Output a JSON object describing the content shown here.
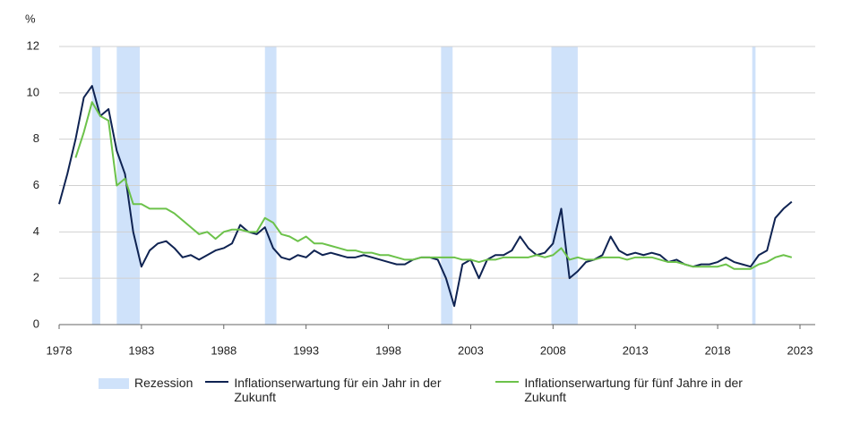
{
  "chart_data": {
    "type": "line",
    "y_unit_label": "%",
    "x": [
      1978.0,
      1978.5,
      1979.0,
      1979.5,
      1980.0,
      1980.5,
      1981.0,
      1981.5,
      1982.0,
      1982.5,
      1983.0,
      1983.5,
      1984.0,
      1984.5,
      1985.0,
      1985.5,
      1986.0,
      1986.5,
      1987.0,
      1987.5,
      1988.0,
      1988.5,
      1989.0,
      1989.5,
      1990.0,
      1990.5,
      1991.0,
      1991.5,
      1992.0,
      1992.5,
      1993.0,
      1993.5,
      1994.0,
      1994.5,
      1995.0,
      1995.5,
      1996.0,
      1996.5,
      1997.0,
      1997.5,
      1998.0,
      1998.5,
      1999.0,
      1999.5,
      2000.0,
      2000.5,
      2001.0,
      2001.5,
      2002.0,
      2002.5,
      2003.0,
      2003.5,
      2004.0,
      2004.5,
      2005.0,
      2005.5,
      2006.0,
      2006.5,
      2007.0,
      2007.5,
      2008.0,
      2008.5,
      2009.0,
      2009.5,
      2010.0,
      2010.5,
      2011.0,
      2011.5,
      2012.0,
      2012.5,
      2013.0,
      2013.5,
      2014.0,
      2014.5,
      2015.0,
      2015.5,
      2016.0,
      2016.5,
      2017.0,
      2017.5,
      2018.0,
      2018.5,
      2019.0,
      2019.5,
      2020.0,
      2020.5,
      2021.0,
      2021.5,
      2022.0,
      2022.5
    ],
    "recessions": {
      "name": "Rezession",
      "color": "#cfe2fa",
      "spans": [
        [
          1980.0,
          1980.5
        ],
        [
          1981.5,
          1982.9
        ],
        [
          1990.5,
          1991.2
        ],
        [
          2001.2,
          2001.9
        ],
        [
          2007.9,
          2009.5
        ],
        [
          2020.1,
          2020.3
        ]
      ]
    },
    "series": [
      {
        "name": "Inflationserwartung für ein Jahr in der Zukunft",
        "color": "#0f2352",
        "values": [
          5.2,
          6.5,
          8.0,
          9.8,
          10.3,
          9.0,
          9.3,
          7.5,
          6.5,
          4.0,
          2.5,
          3.2,
          3.5,
          3.6,
          3.3,
          2.9,
          3.0,
          2.8,
          3.0,
          3.2,
          3.3,
          3.5,
          4.3,
          4.0,
          3.9,
          4.2,
          3.3,
          2.9,
          2.8,
          3.0,
          2.9,
          3.2,
          3.0,
          3.1,
          3.0,
          2.9,
          2.9,
          3.0,
          2.9,
          2.8,
          2.7,
          2.6,
          2.6,
          2.8,
          2.9,
          2.9,
          2.8,
          2.0,
          0.8,
          2.6,
          2.8,
          2.0,
          2.8,
          3.0,
          3.0,
          3.2,
          3.8,
          3.3,
          3.0,
          3.1,
          3.5,
          5.0,
          2.0,
          2.3,
          2.7,
          2.8,
          3.0,
          3.8,
          3.2,
          3.0,
          3.1,
          3.0,
          3.1,
          3.0,
          2.7,
          2.8,
          2.6,
          2.5,
          2.6,
          2.6,
          2.7,
          2.9,
          2.7,
          2.6,
          2.5,
          3.0,
          3.2,
          4.6,
          5.0,
          5.3
        ]
      },
      {
        "name": "Inflationserwartung für fünf Jahre in der Zukunft",
        "color": "#6cc24a",
        "values": [
          null,
          null,
          7.2,
          8.3,
          9.6,
          9.0,
          8.8,
          6.0,
          6.3,
          5.2,
          5.2,
          5.0,
          5.0,
          5.0,
          4.8,
          4.5,
          4.2,
          3.9,
          4.0,
          3.7,
          4.0,
          4.1,
          4.1,
          4.0,
          4.0,
          4.6,
          4.4,
          3.9,
          3.8,
          3.6,
          3.8,
          3.5,
          3.5,
          3.4,
          3.3,
          3.2,
          3.2,
          3.1,
          3.1,
          3.0,
          3.0,
          2.9,
          2.8,
          2.8,
          2.9,
          2.9,
          2.9,
          2.9,
          2.9,
          2.8,
          2.8,
          2.7,
          2.8,
          2.8,
          2.9,
          2.9,
          2.9,
          2.9,
          3.0,
          2.9,
          3.0,
          3.3,
          2.8,
          2.9,
          2.8,
          2.8,
          2.9,
          2.9,
          2.9,
          2.8,
          2.9,
          2.9,
          2.9,
          2.8,
          2.7,
          2.7,
          2.6,
          2.5,
          2.5,
          2.5,
          2.5,
          2.6,
          2.4,
          2.4,
          2.4,
          2.6,
          2.7,
          2.9,
          3.0,
          2.9
        ]
      }
    ],
    "xlim": [
      1978,
      2023
    ],
    "xticks": [
      1978,
      1983,
      1988,
      1993,
      1998,
      2003,
      2008,
      2013,
      2018,
      2023
    ],
    "ylim": [
      0,
      12
    ],
    "yticks": [
      0,
      2,
      4,
      6,
      8,
      10,
      12
    ],
    "grid": true
  }
}
